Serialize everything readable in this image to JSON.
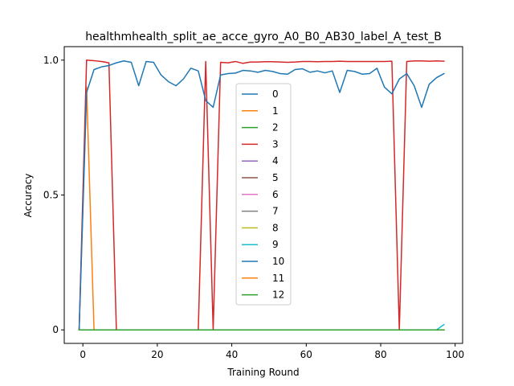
{
  "chart_data": {
    "type": "line",
    "title": "healthmhealth_split_ae_acce_gyro_A0_B0_AB30_label_A_test_B",
    "xlabel": "Training Round",
    "ylabel": "Accuracy",
    "xlim": [
      -5,
      102
    ],
    "ylim": [
      -0.05,
      1.05
    ],
    "xticks": [
      0,
      20,
      40,
      60,
      80,
      100
    ],
    "xtick_labels": [
      "0",
      "20",
      "40",
      "60",
      "80",
      "100"
    ],
    "yticks": [
      0,
      0.5,
      1.0
    ],
    "ytick_labels": [
      "0",
      "0.5",
      "1.0"
    ],
    "grid": false,
    "legend_position": "center",
    "series": [
      {
        "name": "0",
        "color": "#1f77b4",
        "x": [
          -1,
          97
        ],
        "y": [
          0,
          0
        ]
      },
      {
        "name": "1",
        "color": "#ff7f0e",
        "x": [
          -1,
          1,
          3,
          5,
          97
        ],
        "y": [
          0,
          0.9,
          0,
          0,
          0
        ]
      },
      {
        "name": "2",
        "color": "#2ca02c",
        "x": [
          -1,
          97
        ],
        "y": [
          0,
          0
        ]
      },
      {
        "name": "3",
        "color": "#d62728",
        "x": [
          -1,
          1,
          3,
          5,
          7,
          9,
          11,
          13,
          15,
          17,
          19,
          21,
          23,
          25,
          27,
          29,
          31,
          33,
          35,
          37,
          39,
          41,
          43,
          45,
          47,
          49,
          51,
          53,
          55,
          57,
          59,
          61,
          63,
          65,
          67,
          69,
          71,
          73,
          75,
          77,
          79,
          81,
          83,
          85,
          87,
          89,
          91,
          93,
          95,
          97
        ],
        "y": [
          0,
          1.0,
          0.998,
          0.995,
          0.99,
          0,
          0,
          0,
          0,
          0,
          0,
          0,
          0,
          0,
          0,
          0,
          0,
          0.995,
          0,
          0.992,
          0.99,
          0.995,
          0.988,
          0.993,
          0.993,
          0.994,
          0.994,
          0.993,
          0.992,
          0.993,
          0.995,
          0.995,
          0.994,
          0.995,
          0.995,
          0.996,
          0.995,
          0.995,
          0.995,
          0.995,
          0.995,
          0.995,
          0.996,
          0,
          0.995,
          0.997,
          0.997,
          0.996,
          0.997,
          0.996
        ]
      },
      {
        "name": "4",
        "color": "#9467bd",
        "x": [
          -1,
          97
        ],
        "y": [
          0,
          0
        ]
      },
      {
        "name": "5",
        "color": "#8c564b",
        "x": [
          -1,
          97
        ],
        "y": [
          0,
          0
        ]
      },
      {
        "name": "6",
        "color": "#e377c2",
        "x": [
          -1,
          97
        ],
        "y": [
          0,
          0
        ]
      },
      {
        "name": "7",
        "color": "#7f7f7f",
        "x": [
          -1,
          97
        ],
        "y": [
          0,
          0
        ]
      },
      {
        "name": "8",
        "color": "#bcbd22",
        "x": [
          -1,
          97
        ],
        "y": [
          0,
          0
        ]
      },
      {
        "name": "9",
        "color": "#17becf",
        "x": [
          -1,
          95,
          97
        ],
        "y": [
          0,
          0,
          0.02
        ]
      },
      {
        "name": "10",
        "color": "#1f77b4",
        "x": [
          -1,
          1,
          3,
          5,
          7,
          9,
          11,
          13,
          15,
          17,
          19,
          21,
          23,
          25,
          27,
          29,
          31,
          33,
          35,
          37,
          39,
          41,
          43,
          45,
          47,
          49,
          51,
          53,
          55,
          57,
          59,
          61,
          63,
          65,
          67,
          69,
          71,
          73,
          75,
          77,
          79,
          81,
          83,
          85,
          87,
          89,
          91,
          93,
          95,
          97
        ],
        "y": [
          0,
          0.88,
          0.965,
          0.975,
          0.98,
          0.99,
          0.997,
          0.992,
          0.905,
          0.995,
          0.992,
          0.945,
          0.92,
          0.905,
          0.93,
          0.97,
          0.96,
          0.85,
          0.825,
          0.945,
          0.95,
          0.952,
          0.962,
          0.96,
          0.955,
          0.962,
          0.958,
          0.95,
          0.948,
          0.965,
          0.968,
          0.955,
          0.96,
          0.953,
          0.96,
          0.88,
          0.962,
          0.958,
          0.948,
          0.95,
          0.97,
          0.9,
          0.875,
          0.93,
          0.95,
          0.905,
          0.825,
          0.91,
          0.935,
          0.95
        ]
      },
      {
        "name": "11",
        "color": "#ff7f0e",
        "x": [
          -1,
          97
        ],
        "y": [
          0,
          0
        ]
      },
      {
        "name": "12",
        "color": "#2ca02c",
        "x": [
          -1,
          97
        ],
        "y": [
          0,
          0
        ]
      }
    ]
  }
}
